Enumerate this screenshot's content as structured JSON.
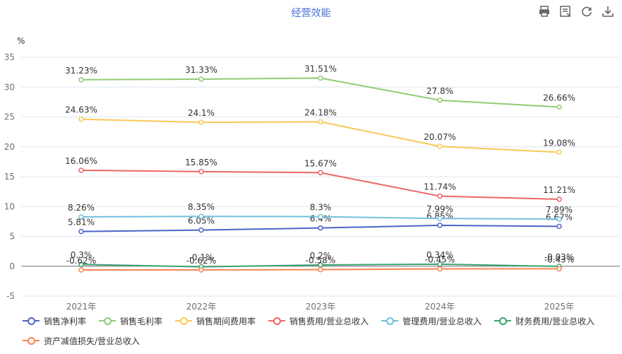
{
  "title": "经营效能",
  "toolbar": {
    "icons": [
      "print-icon",
      "data-view-icon",
      "refresh-icon",
      "download-icon"
    ]
  },
  "chart_data": {
    "type": "line",
    "categories": [
      "2021年",
      "2022年",
      "2023年",
      "2024年",
      "2025年"
    ],
    "ylabel": "%",
    "ylim": [
      -5,
      35
    ],
    "yticks": [
      -5,
      0,
      5,
      10,
      15,
      20,
      25,
      30,
      35
    ],
    "grid": true,
    "legend_position": "bottom",
    "series": [
      {
        "name": "销售净利率",
        "color": "#4e64c7",
        "values": [
          5.81,
          6.05,
          6.4,
          6.85,
          6.67
        ],
        "labels": [
          "5.81%",
          "6.05%",
          "6.4%",
          "6.85%",
          "6.67%"
        ]
      },
      {
        "name": "销售毛利率",
        "color": "#91cc75",
        "values": [
          31.23,
          31.33,
          31.51,
          27.8,
          26.66
        ],
        "labels": [
          "31.23%",
          "31.33%",
          "31.51%",
          "27.8%",
          "26.66%"
        ]
      },
      {
        "name": "销售期间费用率",
        "color": "#fac858",
        "values": [
          24.63,
          24.1,
          24.18,
          20.07,
          19.08
        ],
        "labels": [
          "24.63%",
          "24.1%",
          "24.18%",
          "20.07%",
          "19.08%"
        ]
      },
      {
        "name": "销售费用/营业总收入",
        "color": "#ee6666",
        "values": [
          16.06,
          15.85,
          15.67,
          11.74,
          11.21
        ],
        "labels": [
          "16.06%",
          "15.85%",
          "15.67%",
          "11.74%",
          "11.21%"
        ]
      },
      {
        "name": "管理费用/营业总收入",
        "color": "#73c0de",
        "values": [
          8.26,
          8.35,
          8.3,
          7.99,
          7.89
        ],
        "labels": [
          "8.26%",
          "8.35%",
          "8.3%",
          "7.99%",
          "7.89%"
        ]
      },
      {
        "name": "财务费用/营业总收入",
        "color": "#3ba272",
        "values": [
          0.3,
          -0.1,
          0.2,
          0.34,
          -0.03
        ],
        "labels": [
          "0.3%",
          "-0.1%",
          "0.2%",
          "0.34%",
          "-0.03%"
        ]
      },
      {
        "name": "资产减值损失/营业总收入",
        "color": "#fc8452",
        "values": [
          -0.62,
          -0.62,
          -0.58,
          -0.45,
          -0.43
        ],
        "labels": [
          "-0.62%",
          "-0.62%",
          "-0.58%",
          "-0.45%",
          "-0.43%"
        ]
      }
    ]
  }
}
